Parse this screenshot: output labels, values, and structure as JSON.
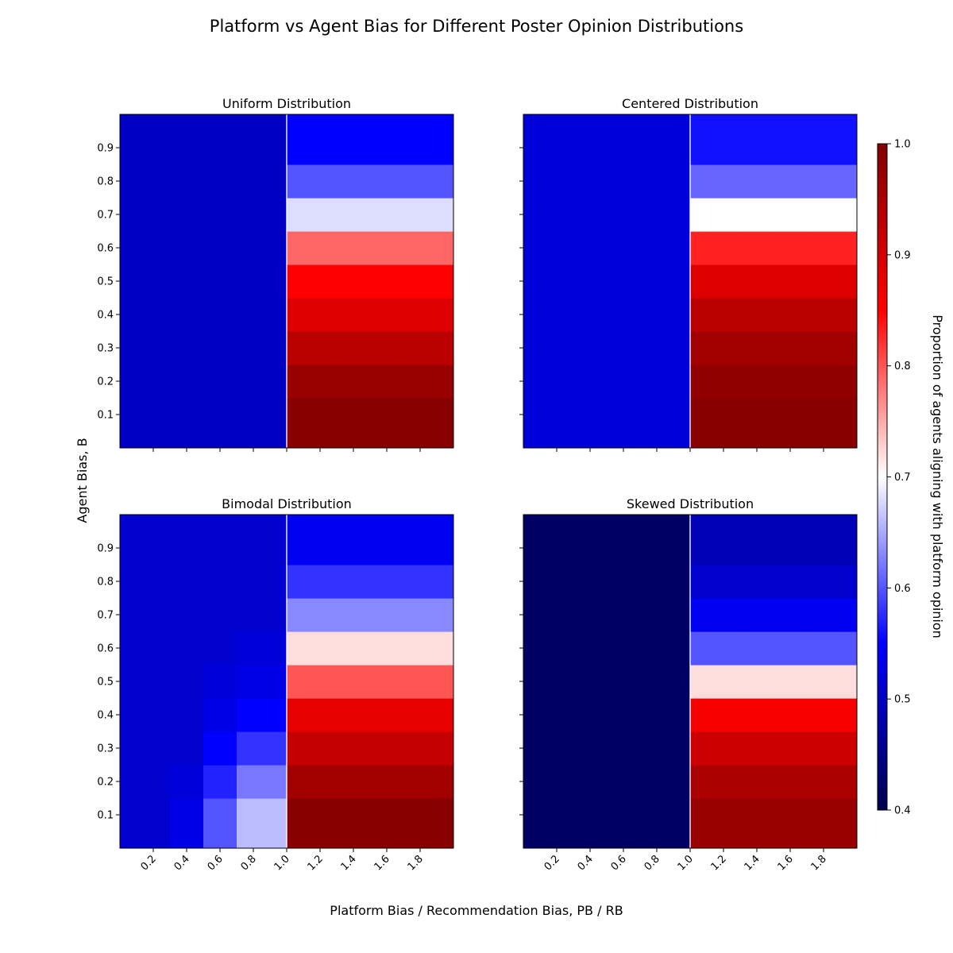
{
  "figure": {
    "title": "Platform vs Agent Bias for Different Poster Opinion Distributions",
    "xlabel": "Platform Bias / Recommendation Bias, PB / RB",
    "ylabel": "Agent Bias, B"
  },
  "colorbar": {
    "label": "Proportion of agents aligning with platform opinion",
    "min": 0.4,
    "max": 1.0,
    "ticks": [
      "0.4",
      "0.5",
      "0.6",
      "0.7",
      "0.8",
      "0.9",
      "1.0"
    ],
    "colormap": "seismic",
    "colors": [
      "#00004c",
      "#0000ff",
      "#ffffff",
      "#ff0000",
      "#800000"
    ]
  },
  "chart_data": [
    {
      "type": "heatmap",
      "title": "Uniform Distribution",
      "x": [
        0.2,
        0.4,
        0.6,
        0.8,
        1.0,
        1.2,
        1.4,
        1.6,
        1.8
      ],
      "y": [
        0.1,
        0.2,
        0.3,
        0.4,
        0.5,
        0.6,
        0.7,
        0.8,
        0.9
      ],
      "xlim": [
        0.0,
        2.0
      ],
      "ylim": [
        0.0,
        1.0
      ],
      "xticks": [
        "0.2",
        "0.4",
        "0.6",
        "0.8",
        "1.0",
        "1.2",
        "1.4",
        "1.6",
        "1.8"
      ],
      "yticks": [
        "0.1",
        "0.2",
        "0.3",
        "0.4",
        "0.5",
        "0.6",
        "0.7",
        "0.8",
        "0.9"
      ],
      "threshold_x": 1.0,
      "values": [
        [
          0.5,
          0.5,
          0.5,
          0.5,
          0.99,
          0.99,
          0.99,
          0.99,
          0.99
        ],
        [
          0.5,
          0.5,
          0.5,
          0.5,
          0.97,
          0.97,
          0.97,
          0.97,
          0.97
        ],
        [
          0.5,
          0.5,
          0.5,
          0.5,
          0.93,
          0.93,
          0.93,
          0.93,
          0.93
        ],
        [
          0.5,
          0.5,
          0.5,
          0.5,
          0.89,
          0.89,
          0.89,
          0.89,
          0.89
        ],
        [
          0.5,
          0.5,
          0.5,
          0.5,
          0.85,
          0.85,
          0.85,
          0.85,
          0.85
        ],
        [
          0.5,
          0.5,
          0.5,
          0.5,
          0.79,
          0.79,
          0.79,
          0.79,
          0.79
        ],
        [
          0.5,
          0.5,
          0.5,
          0.5,
          0.68,
          0.68,
          0.68,
          0.68,
          0.68
        ],
        [
          0.5,
          0.5,
          0.5,
          0.5,
          0.6,
          0.6,
          0.6,
          0.6,
          0.6
        ],
        [
          0.5,
          0.5,
          0.5,
          0.5,
          0.55,
          0.55,
          0.55,
          0.55,
          0.55
        ]
      ]
    },
    {
      "type": "heatmap",
      "title": "Centered Distribution",
      "x": [
        0.2,
        0.4,
        0.6,
        0.8,
        1.0,
        1.2,
        1.4,
        1.6,
        1.8
      ],
      "y": [
        0.1,
        0.2,
        0.3,
        0.4,
        0.5,
        0.6,
        0.7,
        0.8,
        0.9
      ],
      "xlim": [
        0.0,
        2.0
      ],
      "ylim": [
        0.0,
        1.0
      ],
      "xticks": [
        "0.2",
        "0.4",
        "0.6",
        "0.8",
        "1.0",
        "1.2",
        "1.4",
        "1.6",
        "1.8"
      ],
      "yticks": [],
      "threshold_x": 1.0,
      "values": [
        [
          0.52,
          0.52,
          0.52,
          0.52,
          0.99,
          0.99,
          0.99,
          0.99,
          0.99
        ],
        [
          0.52,
          0.52,
          0.52,
          0.52,
          0.98,
          0.98,
          0.98,
          0.98,
          0.98
        ],
        [
          0.52,
          0.52,
          0.52,
          0.52,
          0.96,
          0.96,
          0.96,
          0.96,
          0.96
        ],
        [
          0.52,
          0.52,
          0.52,
          0.52,
          0.93,
          0.93,
          0.93,
          0.93,
          0.93
        ],
        [
          0.52,
          0.52,
          0.52,
          0.52,
          0.89,
          0.89,
          0.89,
          0.89,
          0.89
        ],
        [
          0.52,
          0.52,
          0.52,
          0.52,
          0.83,
          0.83,
          0.83,
          0.83,
          0.83
        ],
        [
          0.52,
          0.52,
          0.52,
          0.52,
          0.7,
          0.7,
          0.7,
          0.7,
          0.7
        ],
        [
          0.52,
          0.52,
          0.52,
          0.52,
          0.61,
          0.61,
          0.61,
          0.61,
          0.61
        ],
        [
          0.52,
          0.52,
          0.52,
          0.52,
          0.56,
          0.56,
          0.56,
          0.56,
          0.56
        ]
      ]
    },
    {
      "type": "heatmap",
      "title": "Bimodal Distribution",
      "x": [
        0.2,
        0.4,
        0.6,
        0.8,
        1.0,
        1.2,
        1.4,
        1.6,
        1.8
      ],
      "y": [
        0.1,
        0.2,
        0.3,
        0.4,
        0.5,
        0.6,
        0.7,
        0.8,
        0.9
      ],
      "xlim": [
        0.0,
        2.0
      ],
      "ylim": [
        0.0,
        1.0
      ],
      "xticks": [
        "0.2",
        "0.4",
        "0.6",
        "0.8",
        "1.0",
        "1.2",
        "1.4",
        "1.6",
        "1.8"
      ],
      "yticks": [
        "0.1",
        "0.2",
        "0.3",
        "0.4",
        "0.5",
        "0.6",
        "0.7",
        "0.8",
        "0.9"
      ],
      "threshold_x": 1.0,
      "values": [
        [
          0.51,
          0.53,
          0.6,
          0.66,
          0.99,
          0.99,
          0.99,
          0.99,
          0.99
        ],
        [
          0.51,
          0.52,
          0.57,
          0.62,
          0.96,
          0.96,
          0.96,
          0.96,
          0.96
        ],
        [
          0.51,
          0.51,
          0.55,
          0.58,
          0.92,
          0.92,
          0.92,
          0.92,
          0.92
        ],
        [
          0.51,
          0.51,
          0.53,
          0.55,
          0.88,
          0.88,
          0.88,
          0.88,
          0.88
        ],
        [
          0.51,
          0.51,
          0.52,
          0.53,
          0.8,
          0.8,
          0.8,
          0.8,
          0.8
        ],
        [
          0.51,
          0.51,
          0.51,
          0.52,
          0.72,
          0.72,
          0.72,
          0.72,
          0.72
        ],
        [
          0.51,
          0.51,
          0.51,
          0.51,
          0.63,
          0.63,
          0.63,
          0.63,
          0.63
        ],
        [
          0.51,
          0.51,
          0.51,
          0.51,
          0.58,
          0.58,
          0.58,
          0.58,
          0.58
        ],
        [
          0.51,
          0.51,
          0.51,
          0.51,
          0.54,
          0.54,
          0.54,
          0.54,
          0.54
        ]
      ]
    },
    {
      "type": "heatmap",
      "title": "Skewed Distribution",
      "x": [
        0.2,
        0.4,
        0.6,
        0.8,
        1.0,
        1.2,
        1.4,
        1.6,
        1.8
      ],
      "y": [
        0.1,
        0.2,
        0.3,
        0.4,
        0.5,
        0.6,
        0.7,
        0.8,
        0.9
      ],
      "xlim": [
        0.0,
        2.0
      ],
      "ylim": [
        0.0,
        1.0
      ],
      "xticks": [
        "0.2",
        "0.4",
        "0.6",
        "0.8",
        "1.0",
        "1.2",
        "1.4",
        "1.6",
        "1.8"
      ],
      "yticks": [],
      "threshold_x": 1.0,
      "values": [
        [
          0.42,
          0.42,
          0.42,
          0.42,
          0.97,
          0.97,
          0.97,
          0.97,
          0.97
        ],
        [
          0.42,
          0.42,
          0.42,
          0.42,
          0.95,
          0.95,
          0.95,
          0.95,
          0.95
        ],
        [
          0.42,
          0.42,
          0.42,
          0.42,
          0.91,
          0.91,
          0.91,
          0.91,
          0.91
        ],
        [
          0.42,
          0.42,
          0.42,
          0.42,
          0.86,
          0.86,
          0.86,
          0.86,
          0.86
        ],
        [
          0.42,
          0.42,
          0.42,
          0.42,
          0.72,
          0.72,
          0.72,
          0.72,
          0.72
        ],
        [
          0.42,
          0.42,
          0.42,
          0.42,
          0.6,
          0.6,
          0.6,
          0.6,
          0.6
        ],
        [
          0.42,
          0.42,
          0.42,
          0.42,
          0.54,
          0.54,
          0.54,
          0.54,
          0.54
        ],
        [
          0.42,
          0.42,
          0.42,
          0.42,
          0.51,
          0.51,
          0.51,
          0.51,
          0.51
        ],
        [
          0.42,
          0.42,
          0.42,
          0.42,
          0.49,
          0.49,
          0.49,
          0.49,
          0.49
        ]
      ]
    }
  ]
}
